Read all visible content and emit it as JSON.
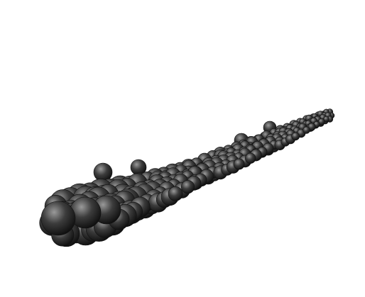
{
  "scene": {
    "background_color": "#ffffff",
    "sphere_base_color": "#3c3c3c",
    "sphere_highlight_color": "#9a9a9a",
    "sphere_shadow_color": "#0a0a0a"
  }
}
